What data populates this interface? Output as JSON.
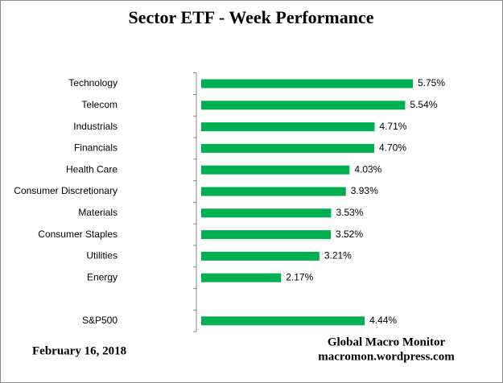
{
  "chart_data": {
    "type": "bar",
    "orientation": "horizontal",
    "title": "Sector ETF - Week Performance",
    "categories": [
      "Technology",
      "Telecom",
      "Industrials",
      "Financials",
      "Health Care",
      "Consumer Discretionary",
      "Materials",
      "Consumer Staples",
      "Utilities",
      "Energy",
      null,
      "S&P500"
    ],
    "values": [
      5.75,
      5.54,
      4.71,
      4.7,
      4.03,
      3.93,
      3.53,
      3.52,
      3.21,
      2.17,
      null,
      4.44
    ],
    "value_labels": [
      "5.75%",
      "5.54%",
      "4.71%",
      "4.70%",
      "4.03%",
      "3.93%",
      "3.53%",
      "3.52%",
      "3.21%",
      "2.17%",
      null,
      "4.44%"
    ],
    "color": "#00b050",
    "date": "February 16, 2018",
    "source": [
      "Global Macro Monitor",
      "macromon.wordpress.com"
    ]
  }
}
